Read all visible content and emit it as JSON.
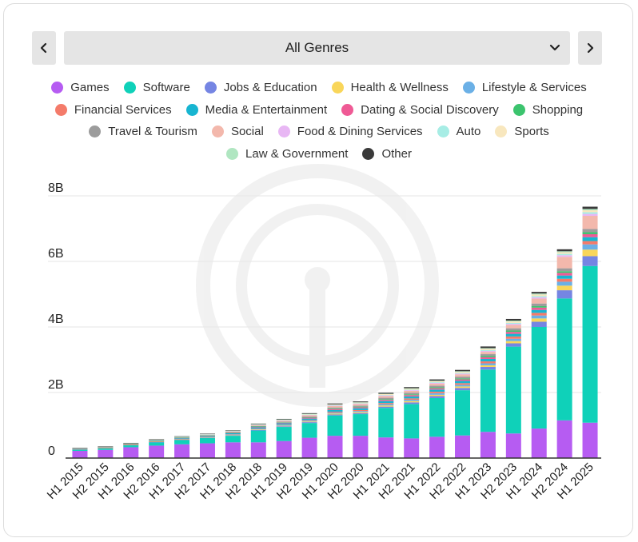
{
  "selector": {
    "label": "All Genres"
  },
  "legend": [
    {
      "name": "Games",
      "color": "#b65cf2"
    },
    {
      "name": "Software",
      "color": "#0fd1b9"
    },
    {
      "name": "Jobs & Education",
      "color": "#7585e3"
    },
    {
      "name": "Health & Wellness",
      "color": "#f9d65a"
    },
    {
      "name": "Lifestyle & Services",
      "color": "#6bb0e6"
    },
    {
      "name": "Financial Services",
      "color": "#f47b6a"
    },
    {
      "name": "Media & Entertainment",
      "color": "#17b5d1"
    },
    {
      "name": "Dating & Social Discovery",
      "color": "#ef5a95"
    },
    {
      "name": "Shopping",
      "color": "#3cc46e"
    },
    {
      "name": "Travel & Tourism",
      "color": "#9c9c9c"
    },
    {
      "name": "Social",
      "color": "#f3b8ac"
    },
    {
      "name": "Food & Dining Services",
      "color": "#e8b7f4"
    },
    {
      "name": "Auto",
      "color": "#a7ede5"
    },
    {
      "name": "Sports",
      "color": "#f8e7be"
    },
    {
      "name": "Law & Government",
      "color": "#b0e6c1"
    },
    {
      "name": "Other",
      "color": "#3a3a3a"
    }
  ],
  "chart_data": {
    "type": "bar",
    "stacked": true,
    "categories": [
      "H1 2015",
      "H2 2015",
      "H1 2016",
      "H2 2016",
      "H1 2017",
      "H2 2017",
      "H1 2018",
      "H2 2018",
      "H1 2019",
      "H2 2019",
      "H1 2020",
      "H2 2020",
      "H1 2021",
      "H2 2021",
      "H1 2022",
      "H2 2022",
      "H1 2023",
      "H2 2023",
      "H1 2024",
      "H2 2024",
      "H1 2025"
    ],
    "yticks": [
      "0",
      "2B",
      "4B",
      "6B",
      "8B"
    ],
    "ylim": [
      0,
      8
    ],
    "unit": "B",
    "series": [
      {
        "name": "Games",
        "values": [
          0.22,
          0.25,
          0.33,
          0.38,
          0.42,
          0.45,
          0.48,
          0.48,
          0.52,
          0.62,
          0.68,
          0.68,
          0.63,
          0.6,
          0.65,
          0.69,
          0.8,
          0.75,
          0.9,
          1.15,
          1.08
        ]
      },
      {
        "name": "Software",
        "values": [
          0.04,
          0.05,
          0.06,
          0.1,
          0.13,
          0.16,
          0.2,
          0.36,
          0.43,
          0.45,
          0.62,
          0.66,
          0.9,
          1.05,
          1.18,
          1.38,
          1.9,
          2.65,
          3.1,
          3.72,
          4.78
        ]
      },
      {
        "name": "Jobs & Education",
        "values": [
          0.005,
          0.005,
          0.01,
          0.01,
          0.01,
          0.01,
          0.015,
          0.02,
          0.02,
          0.025,
          0.03,
          0.03,
          0.04,
          0.05,
          0.06,
          0.07,
          0.08,
          0.1,
          0.16,
          0.25,
          0.3
        ]
      },
      {
        "name": "Health & Wellness",
        "values": [
          0.005,
          0.005,
          0.005,
          0.01,
          0.01,
          0.01,
          0.01,
          0.015,
          0.015,
          0.02,
          0.03,
          0.03,
          0.035,
          0.04,
          0.04,
          0.045,
          0.05,
          0.07,
          0.1,
          0.14,
          0.2
        ]
      },
      {
        "name": "Lifestyle & Services",
        "values": [
          0.004,
          0.004,
          0.005,
          0.008,
          0.01,
          0.01,
          0.012,
          0.015,
          0.02,
          0.025,
          0.03,
          0.035,
          0.04,
          0.04,
          0.05,
          0.05,
          0.06,
          0.07,
          0.09,
          0.12,
          0.16
        ]
      },
      {
        "name": "Financial Services",
        "values": [
          0.003,
          0.003,
          0.004,
          0.005,
          0.006,
          0.008,
          0.01,
          0.012,
          0.015,
          0.02,
          0.025,
          0.03,
          0.035,
          0.04,
          0.045,
          0.05,
          0.06,
          0.07,
          0.08,
          0.09,
          0.1
        ]
      },
      {
        "name": "Media & Entertainment",
        "values": [
          0.008,
          0.01,
          0.012,
          0.015,
          0.02,
          0.025,
          0.03,
          0.035,
          0.04,
          0.045,
          0.05,
          0.055,
          0.06,
          0.06,
          0.065,
          0.07,
          0.075,
          0.08,
          0.09,
          0.1,
          0.12
        ]
      },
      {
        "name": "Dating & Social Discovery",
        "values": [
          0.004,
          0.005,
          0.006,
          0.008,
          0.01,
          0.012,
          0.014,
          0.016,
          0.02,
          0.025,
          0.03,
          0.03,
          0.035,
          0.04,
          0.04,
          0.045,
          0.05,
          0.06,
          0.07,
          0.08,
          0.09
        ]
      },
      {
        "name": "Shopping",
        "values": [
          0.002,
          0.003,
          0.003,
          0.004,
          0.005,
          0.006,
          0.008,
          0.01,
          0.012,
          0.015,
          0.02,
          0.02,
          0.025,
          0.025,
          0.03,
          0.03,
          0.035,
          0.04,
          0.045,
          0.05,
          0.06
        ]
      },
      {
        "name": "Travel & Tourism",
        "values": [
          0.004,
          0.005,
          0.006,
          0.008,
          0.01,
          0.012,
          0.015,
          0.02,
          0.02,
          0.025,
          0.03,
          0.03,
          0.04,
          0.05,
          0.05,
          0.055,
          0.06,
          0.07,
          0.08,
          0.09,
          0.1
        ]
      },
      {
        "name": "Social",
        "values": [
          0.005,
          0.006,
          0.008,
          0.01,
          0.012,
          0.015,
          0.02,
          0.025,
          0.03,
          0.035,
          0.04,
          0.045,
          0.05,
          0.055,
          0.06,
          0.065,
          0.07,
          0.1,
          0.15,
          0.35,
          0.4
        ]
      },
      {
        "name": "Food & Dining Services",
        "values": [
          0.002,
          0.002,
          0.003,
          0.003,
          0.004,
          0.005,
          0.006,
          0.008,
          0.01,
          0.012,
          0.015,
          0.015,
          0.02,
          0.02,
          0.025,
          0.025,
          0.03,
          0.035,
          0.04,
          0.05,
          0.06
        ]
      },
      {
        "name": "Auto",
        "values": [
          0.001,
          0.002,
          0.002,
          0.003,
          0.003,
          0.004,
          0.005,
          0.006,
          0.008,
          0.01,
          0.012,
          0.012,
          0.015,
          0.015,
          0.02,
          0.02,
          0.025,
          0.03,
          0.035,
          0.04,
          0.05
        ]
      },
      {
        "name": "Sports",
        "values": [
          0.002,
          0.002,
          0.003,
          0.004,
          0.005,
          0.006,
          0.008,
          0.01,
          0.012,
          0.015,
          0.018,
          0.02,
          0.025,
          0.03,
          0.03,
          0.035,
          0.04,
          0.045,
          0.05,
          0.05,
          0.06
        ]
      },
      {
        "name": "Law & Government",
        "values": [
          0.001,
          0.001,
          0.002,
          0.002,
          0.003,
          0.003,
          0.004,
          0.005,
          0.006,
          0.008,
          0.01,
          0.01,
          0.012,
          0.015,
          0.015,
          0.02,
          0.02,
          0.025,
          0.03,
          0.03,
          0.04
        ]
      },
      {
        "name": "Other",
        "values": [
          0.003,
          0.004,
          0.005,
          0.006,
          0.008,
          0.01,
          0.012,
          0.015,
          0.018,
          0.02,
          0.025,
          0.025,
          0.03,
          0.035,
          0.04,
          0.04,
          0.05,
          0.05,
          0.05,
          0.06,
          0.07
        ]
      }
    ],
    "grid": true,
    "legend_position": "top"
  }
}
